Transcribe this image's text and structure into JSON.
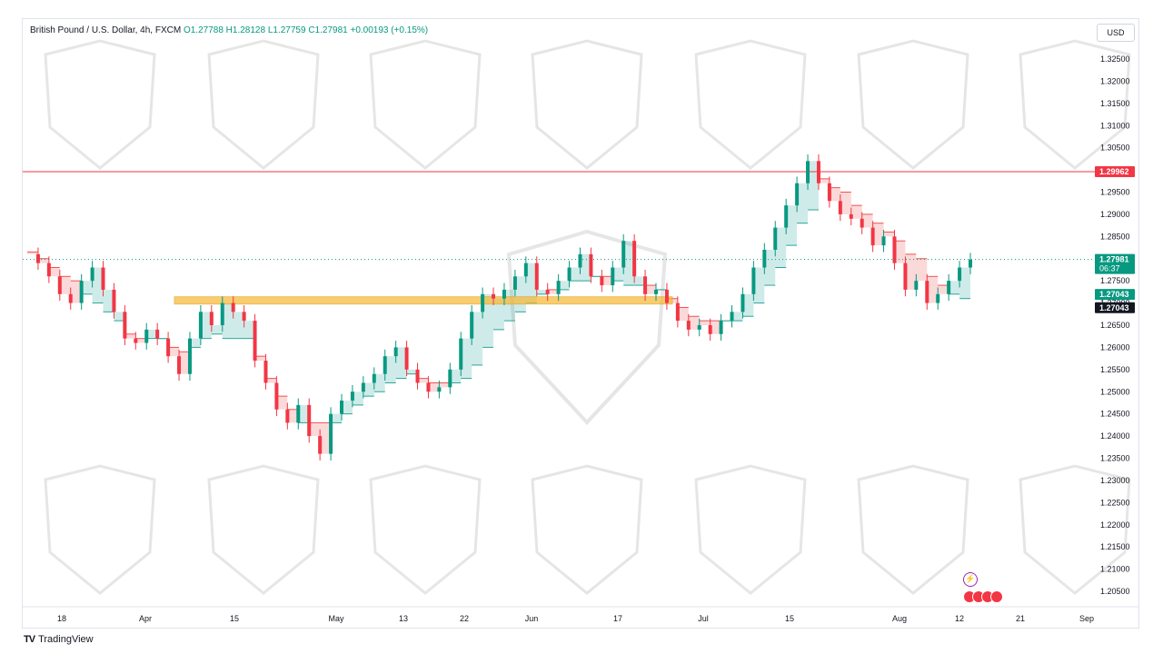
{
  "header": {
    "symbol": "British Pound / U.S. Dollar, 4h, FXCM",
    "open": "O1.27788",
    "high": "H1.28128",
    "low": "L1.27759",
    "close": "C1.27981",
    "change": "+0.00193 (+0.15%)"
  },
  "currency": "USD",
  "footer": {
    "brand": "TradingView"
  },
  "colors": {
    "up": "#089981",
    "down": "#f23645",
    "zone": "#f7b731",
    "band_up": "#26a69a",
    "band_down": "#ef5350",
    "resistance": "#f23645"
  },
  "chart_data": {
    "type": "line",
    "ylim": [
      1.2,
      1.329
    ],
    "y_ticks": [
      "1.20500",
      "1.21000",
      "1.21500",
      "1.22000",
      "1.22500",
      "1.23000",
      "1.23500",
      "1.24000",
      "1.24500",
      "1.25000",
      "1.25500",
      "1.26000",
      "1.26500",
      "1.27000",
      "1.27500",
      "1.28000",
      "1.28500",
      "1.29000",
      "1.29500",
      "1.30000",
      "1.30500",
      "1.31000",
      "1.31500",
      "1.32000",
      "1.32500"
    ],
    "x_ticks": [
      "18",
      "Apr",
      "15",
      "May",
      "13",
      "22",
      "Jun",
      "17",
      "Jul",
      "15",
      "Aug",
      "12",
      "21",
      "Sep"
    ],
    "series": [
      {
        "values": [
          1.281,
          1.279,
          1.276,
          1.272,
          1.27,
          1.275,
          1.278,
          1.273,
          1.268,
          1.262,
          1.261,
          1.264,
          1.262,
          1.258,
          1.254,
          1.262,
          1.268,
          1.265,
          1.27,
          1.268,
          1.266,
          1.257,
          1.252,
          1.246,
          1.243,
          1.247,
          1.24,
          1.236,
          1.245,
          1.248,
          1.25,
          1.252,
          1.254,
          1.258,
          1.26,
          1.255,
          1.252,
          1.25,
          1.251,
          1.255,
          1.262,
          1.268,
          1.272,
          1.271,
          1.273,
          1.276,
          1.279,
          1.273,
          1.272,
          1.275,
          1.278,
          1.281,
          1.276,
          1.274,
          1.278,
          1.284,
          1.276,
          1.272,
          1.273,
          1.27,
          1.266,
          1.264,
          1.265,
          1.263,
          1.266,
          1.268,
          1.272,
          1.278,
          1.282,
          1.287,
          1.292,
          1.297,
          1.302,
          1.297,
          1.293,
          1.29,
          1.289,
          1.287,
          1.283,
          1.285,
          1.279,
          1.273,
          1.275,
          1.27,
          1.272,
          1.275,
          1.278,
          1.2798
        ]
      }
    ],
    "band": {
      "values": [
        1.2815,
        1.28,
        1.278,
        1.276,
        1.275,
        1.272,
        1.27,
        1.268,
        1.266,
        1.263,
        1.262,
        1.262,
        1.262,
        1.26,
        1.259,
        1.26,
        1.262,
        1.263,
        1.262,
        1.262,
        1.262,
        1.258,
        1.253,
        1.249,
        1.246,
        1.243,
        1.243,
        1.243,
        1.243,
        1.245,
        1.247,
        1.249,
        1.25,
        1.252,
        1.253,
        1.254,
        1.253,
        1.252,
        1.252,
        1.252,
        1.253,
        1.256,
        1.26,
        1.264,
        1.266,
        1.268,
        1.27,
        1.272,
        1.273,
        1.273,
        1.275,
        1.275,
        1.276,
        1.276,
        1.275,
        1.274,
        1.274,
        1.274,
        1.273,
        1.271,
        1.269,
        1.267,
        1.266,
        1.266,
        1.266,
        1.266,
        1.267,
        1.27,
        1.274,
        1.278,
        1.283,
        1.288,
        1.291,
        1.298,
        1.296,
        1.295,
        1.292,
        1.29,
        1.288,
        1.286,
        1.284,
        1.281,
        1.28,
        1.276,
        1.274,
        1.272,
        1.271,
        1.271
      ]
    },
    "resistance": 1.29962,
    "support_zone": [
      1.2695,
      1.271
    ],
    "last_price": {
      "value": "1.27981",
      "countdown": "06:37"
    },
    "band_label": "1.27043",
    "level_label": "1.27043",
    "resistance_label": "1.29962"
  }
}
